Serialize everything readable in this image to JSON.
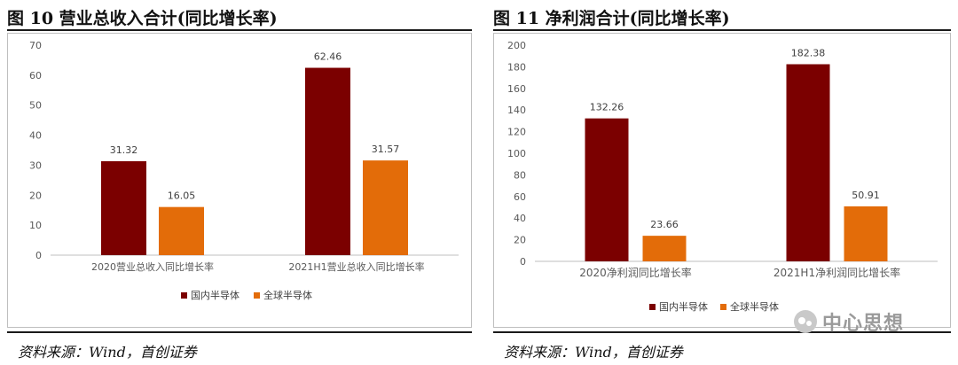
{
  "colors": {
    "domestic": "#7b0000",
    "global": "#e36c09",
    "axis_text": "#595959"
  },
  "left": {
    "title": "图 10  营业总收入合计(同比增长率)",
    "source": "资料来源：Wind，首创证券"
  },
  "right": {
    "title": "图 11  净利润合计(同比增长率)",
    "source": "资料来源：Wind，首创证券"
  },
  "watermark": {
    "text": "中心思想",
    "icon": "wechat-logo-icon"
  },
  "chart_data": [
    {
      "type": "bar",
      "title": "图 10  营业总收入合计(同比增长率)",
      "categories": [
        "2020营业总收入同比增长率",
        "2021H1营业总收入同比增长率"
      ],
      "series": [
        {
          "name": "国内半导体",
          "values": [
            31.32,
            62.46
          ]
        },
        {
          "name": "全球半导体",
          "values": [
            16.05,
            31.57
          ]
        }
      ],
      "ylim": [
        0,
        70
      ],
      "yticks": [
        0,
        10,
        20,
        30,
        40,
        50,
        60,
        70
      ],
      "grid": false,
      "legend": "bottom"
    },
    {
      "type": "bar",
      "title": "图 11  净利润合计(同比增长率)",
      "categories": [
        "2020净利润同比增长率",
        "2021H1净利润同比增长率"
      ],
      "series": [
        {
          "name": "国内半导体",
          "values": [
            132.26,
            182.38
          ]
        },
        {
          "name": "全球半导体",
          "values": [
            23.66,
            50.91
          ]
        }
      ],
      "ylim": [
        0,
        200
      ],
      "yticks": [
        0,
        20,
        40,
        60,
        80,
        100,
        120,
        140,
        160,
        180,
        200
      ],
      "grid": false,
      "legend": "bottom"
    }
  ]
}
